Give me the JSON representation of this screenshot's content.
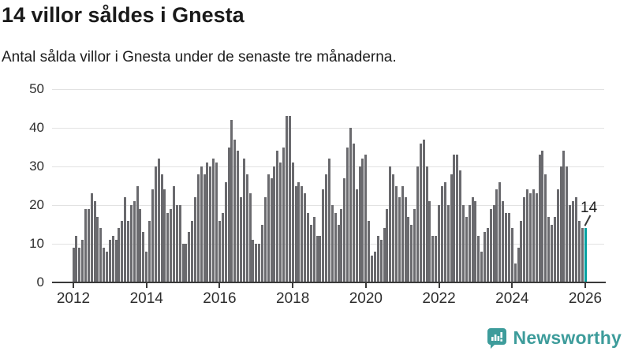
{
  "header": {
    "title": "14 villor såldes i Gnesta",
    "subtitle": "Antal sålda villor i Gnesta under de senaste tre månaderna."
  },
  "chart_data": {
    "type": "bar",
    "title": "14 villor såldes i Gnesta",
    "subtitle": "Antal sålda villor i Gnesta under de senaste tre månaderna.",
    "x_start_label": "2012",
    "x_end_label": "2026",
    "x_unit": "month",
    "values": [
      9,
      12,
      9,
      11,
      19,
      19,
      23,
      21,
      17,
      14,
      9,
      8,
      11,
      12,
      11,
      14,
      16,
      22,
      16,
      20,
      21,
      25,
      19,
      13,
      8,
      16,
      24,
      30,
      32,
      28,
      24,
      18,
      19,
      25,
      20,
      20,
      10,
      10,
      13,
      16,
      22,
      28,
      30,
      28,
      31,
      30,
      32,
      31,
      16,
      18,
      26,
      35,
      42,
      37,
      34,
      22,
      32,
      28,
      23,
      11,
      10,
      10,
      15,
      22,
      28,
      27,
      30,
      34,
      31,
      35,
      43,
      43,
      31,
      25,
      26,
      25,
      23,
      18,
      15,
      17,
      12,
      12,
      24,
      28,
      32,
      20,
      18,
      15,
      19,
      27,
      35,
      40,
      36,
      24,
      30,
      32,
      33,
      16,
      7,
      8,
      12,
      11,
      14,
      19,
      30,
      28,
      25,
      22,
      25,
      22,
      17,
      15,
      19,
      30,
      36,
      37,
      30,
      21,
      12,
      12,
      20,
      25,
      26,
      20,
      28,
      33,
      33,
      29,
      20,
      17,
      20,
      22,
      21,
      12,
      8,
      13,
      14,
      19,
      20,
      24,
      26,
      21,
      18,
      18,
      14,
      5,
      9,
      16,
      22,
      24,
      23,
      24,
      23,
      33,
      34,
      28,
      17,
      15,
      17,
      24,
      30,
      34,
      30,
      20,
      21,
      22,
      16,
      14,
      14
    ],
    "highlight_last": true,
    "bar_color": "#6a6a6e",
    "highlight_color": "#00a0a0",
    "ylim": [
      0,
      50
    ],
    "yticks": [
      0,
      10,
      20,
      30,
      40,
      50
    ],
    "xticks": [
      "2012",
      "2014",
      "2016",
      "2018",
      "2020",
      "2022",
      "2024",
      "2026"
    ],
    "grid": "horizontal",
    "annotation": {
      "text": "14"
    }
  },
  "footer": {
    "brand": "Newsworthy",
    "brand_color": "#3d9c9b",
    "logo_icon": "bar-chart-speech-bubble-icon"
  }
}
